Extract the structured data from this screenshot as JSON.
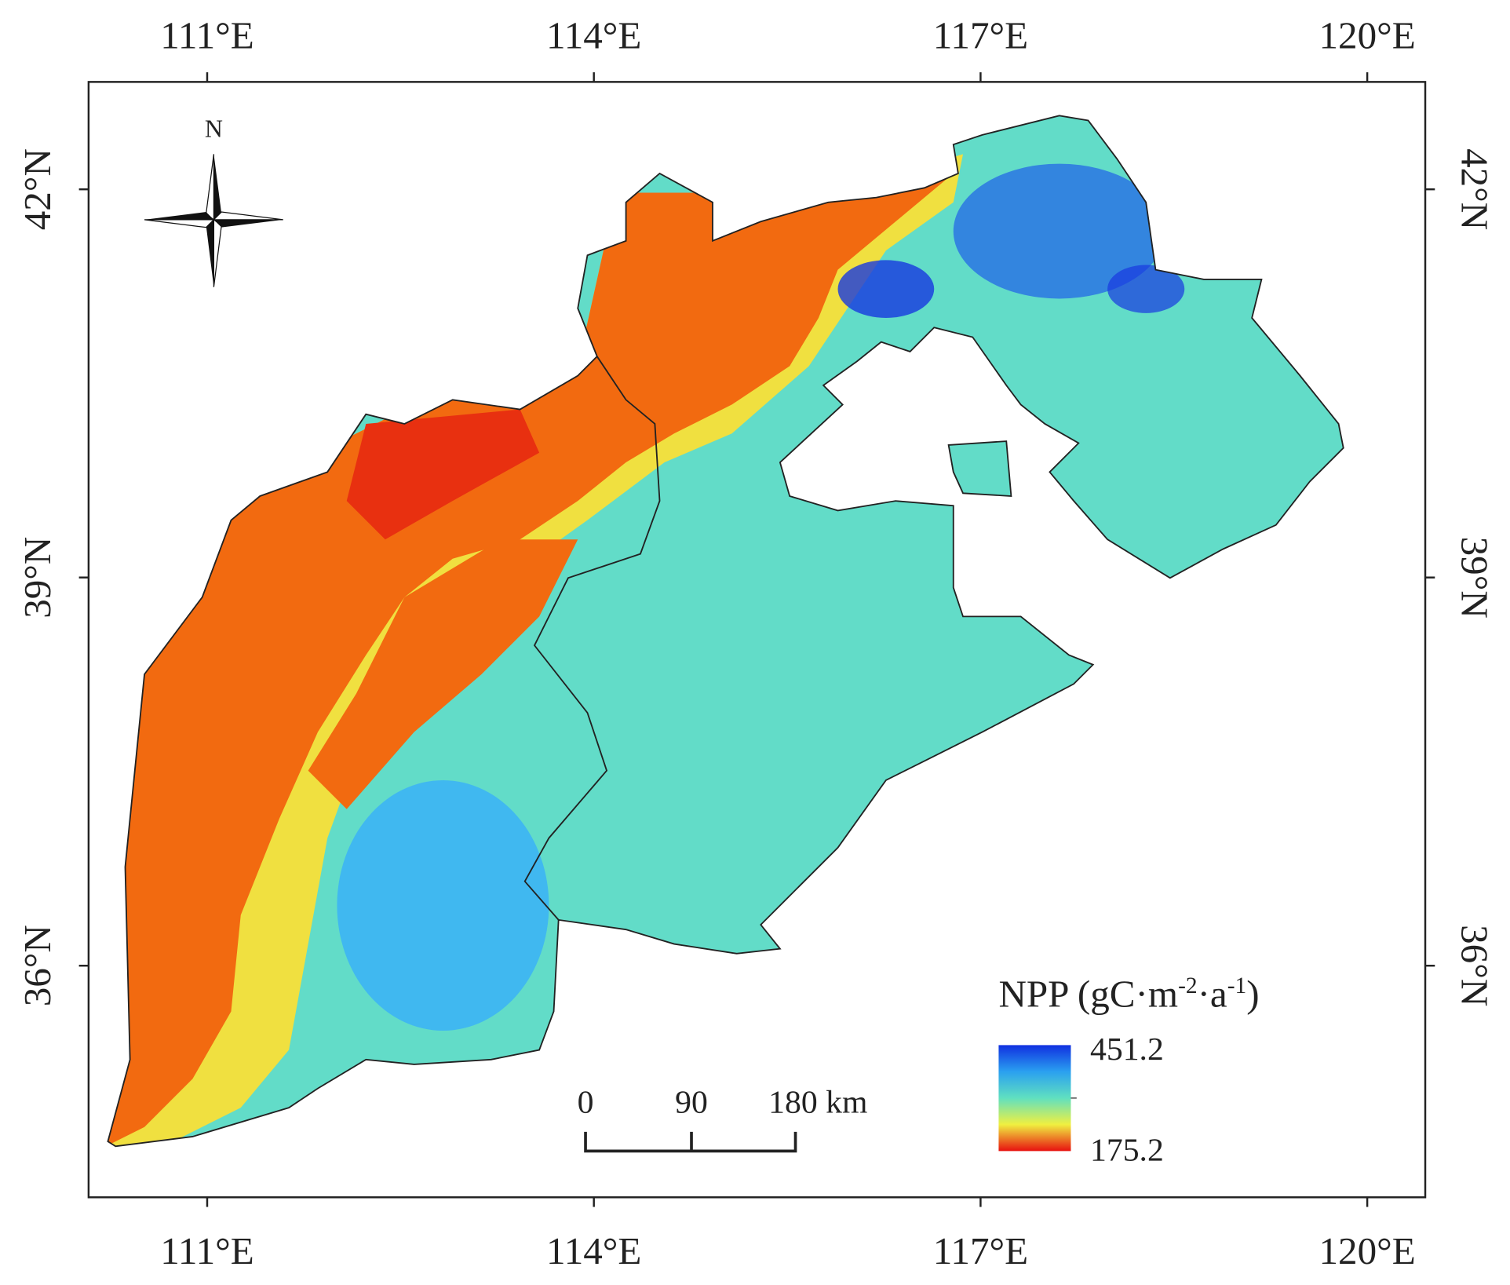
{
  "map": {
    "north_label": "N",
    "xlim": [
      110.08,
      120.45
    ],
    "ylim": [
      34.21,
      42.83
    ],
    "xticks": [
      {
        "value": 111,
        "label": "111°E"
      },
      {
        "value": 114,
        "label": "114°E"
      },
      {
        "value": 117,
        "label": "117°E"
      },
      {
        "value": 120,
        "label": "120°E"
      }
    ],
    "yticks": [
      {
        "value": 42,
        "label": "42°N"
      },
      {
        "value": 39,
        "label": "39°N"
      },
      {
        "value": 36,
        "label": "36°N"
      }
    ],
    "legend": {
      "title_parts": [
        "NPP (gC·m",
        "-2",
        "·a",
        "-1",
        ")"
      ],
      "max_value": 451.2,
      "min_value": 175.2
    },
    "scale_bar": {
      "labels": [
        "0",
        "90",
        "180 km"
      ]
    }
  }
}
